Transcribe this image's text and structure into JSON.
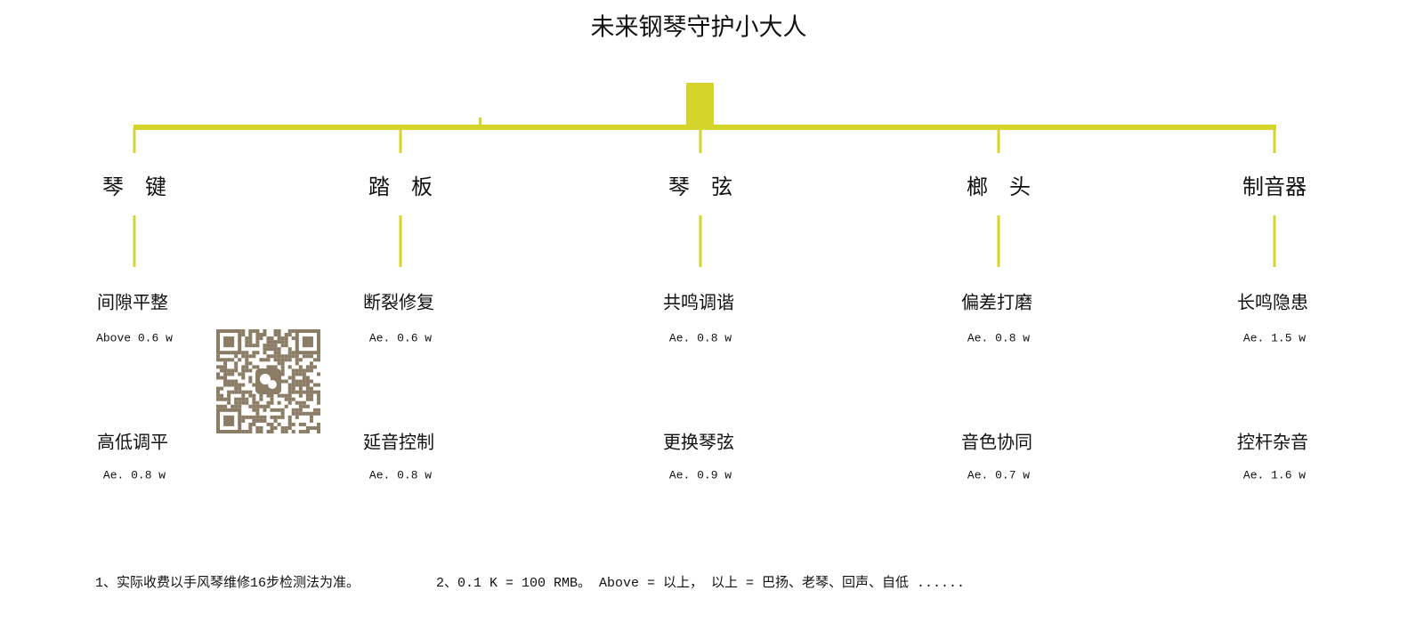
{
  "title": "未来钢琴守护小大人",
  "columns": [
    {
      "header": "琴　键",
      "items": [
        {
          "name": "间隙平整",
          "price": "Above 0.6 w"
        },
        {
          "name": "高低调平",
          "price": "Ae. 0.8 w"
        }
      ]
    },
    {
      "header": "踏　板",
      "items": [
        {
          "name": "断裂修复",
          "price": "Ae. 0.6 w"
        },
        {
          "name": "延音控制",
          "price": "Ae. 0.8 w"
        }
      ]
    },
    {
      "header": "琴　弦",
      "items": [
        {
          "name": "共鸣调谐",
          "price": "Ae. 0.8 w"
        },
        {
          "name": "更换琴弦",
          "price": "Ae. 0.9 w"
        }
      ]
    },
    {
      "header": "榔　头",
      "items": [
        {
          "name": "偏差打磨",
          "price": "Ae. 0.8 w"
        },
        {
          "name": "音色协同",
          "price": "Ae. 0.7 w"
        }
      ]
    },
    {
      "header": "制音器",
      "items": [
        {
          "name": "长鸣隐患",
          "price": "Ae. 1.5 w"
        },
        {
          "name": "控杆杂音",
          "price": "Ae. 1.6 w"
        }
      ]
    }
  ],
  "notes": [
    "1、实际收费以手风琴维修16步检测法为准。",
    "2、0.1 K = 100 RMB。 Above = 以上， 以上 = 巴扬、老琴、回声、自低 ......"
  ]
}
